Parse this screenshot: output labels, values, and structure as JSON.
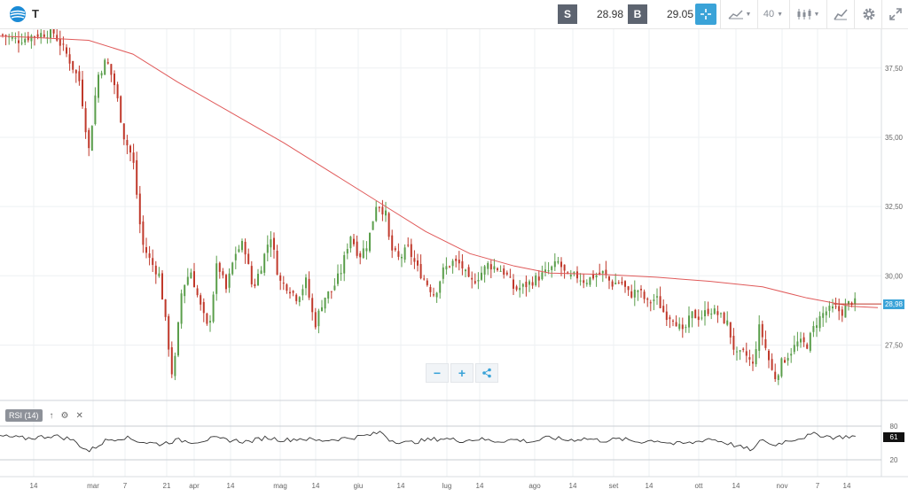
{
  "toolbar": {
    "symbol": "T",
    "sell_label": "S",
    "sell_price": "28.98",
    "buy_label": "B",
    "buy_price": "29.05",
    "period_label": "40",
    "accent_color": "#3aa3d8"
  },
  "chart_data": {
    "type": "candlestick",
    "y_ticks": [
      "37,50",
      "35,00",
      "32,50",
      "30,00",
      "27,50"
    ],
    "y_range": [
      25.5,
      38.9
    ],
    "x_ticks": [
      "14",
      "mar",
      "7",
      "21",
      "apr",
      "14",
      "mag",
      "14",
      "giu",
      "14",
      "lug",
      "14",
      "ago",
      "14",
      "set",
      "14",
      "ott",
      "14",
      "nov",
      "7",
      "14"
    ],
    "last_price_label": "28,98",
    "up_color": "#5a9e4b",
    "down_color": "#c0392b",
    "ma_color": "#e05a5a",
    "moving_average": {
      "points": [
        [
          0,
          38.65
        ],
        [
          40,
          38.6
        ],
        [
          100,
          38.5
        ],
        [
          150,
          38.0
        ],
        [
          200,
          37.0
        ],
        [
          260,
          35.9
        ],
        [
          320,
          34.8
        ],
        [
          380,
          33.6
        ],
        [
          430,
          32.6
        ],
        [
          480,
          31.6
        ],
        [
          530,
          30.8
        ],
        [
          580,
          30.35
        ],
        [
          620,
          30.1
        ],
        [
          680,
          30.05
        ],
        [
          740,
          29.95
        ],
        [
          800,
          29.8
        ],
        [
          860,
          29.6
        ],
        [
          910,
          29.2
        ],
        [
          960,
          28.9
        ],
        [
          990,
          28.85
        ]
      ]
    },
    "price_path": [
      [
        2,
        38.7
      ],
      [
        20,
        38.5
      ],
      [
        40,
        38.7
      ],
      [
        60,
        38.8
      ],
      [
        75,
        38.0
      ],
      [
        90,
        37.0
      ],
      [
        100,
        34.5
      ],
      [
        110,
        37.2
      ],
      [
        120,
        37.8
      ],
      [
        130,
        36.8
      ],
      [
        140,
        35.0
      ],
      [
        150,
        34.2
      ],
      [
        160,
        31.2
      ],
      [
        170,
        30.5
      ],
      [
        180,
        30.0
      ],
      [
        190,
        27.5
      ],
      [
        195,
        26.2
      ],
      [
        205,
        29.5
      ],
      [
        215,
        30.2
      ],
      [
        225,
        29.0
      ],
      [
        235,
        28.0
      ],
      [
        245,
        30.5
      ],
      [
        255,
        29.5
      ],
      [
        265,
        30.8
      ],
      [
        275,
        31.2
      ],
      [
        285,
        29.5
      ],
      [
        295,
        30.4
      ],
      [
        305,
        31.5
      ],
      [
        315,
        29.8
      ],
      [
        325,
        29.6
      ],
      [
        335,
        29.2
      ],
      [
        345,
        29.8
      ],
      [
        355,
        28.2
      ],
      [
        365,
        29.2
      ],
      [
        375,
        29.5
      ],
      [
        385,
        30.2
      ],
      [
        395,
        31.5
      ],
      [
        405,
        30.7
      ],
      [
        415,
        31.2
      ],
      [
        425,
        32.7
      ],
      [
        435,
        32.2
      ],
      [
        440,
        31.0
      ],
      [
        450,
        30.6
      ],
      [
        460,
        31.0
      ],
      [
        470,
        30.3
      ],
      [
        480,
        29.8
      ],
      [
        490,
        29.3
      ],
      [
        500,
        30.2
      ],
      [
        510,
        30.5
      ],
      [
        520,
        30.4
      ],
      [
        530,
        29.7
      ],
      [
        540,
        30.0
      ],
      [
        550,
        30.4
      ],
      [
        560,
        30.3
      ],
      [
        570,
        30.1
      ],
      [
        580,
        29.5
      ],
      [
        590,
        29.6
      ],
      [
        600,
        29.8
      ],
      [
        610,
        30.0
      ],
      [
        620,
        30.2
      ],
      [
        630,
        30.5
      ],
      [
        640,
        29.9
      ],
      [
        650,
        30.0
      ],
      [
        660,
        29.8
      ],
      [
        670,
        30.0
      ],
      [
        680,
        30.1
      ],
      [
        690,
        29.7
      ],
      [
        700,
        29.8
      ],
      [
        710,
        29.3
      ],
      [
        720,
        29.5
      ],
      [
        730,
        29.0
      ],
      [
        740,
        29.2
      ],
      [
        750,
        28.6
      ],
      [
        760,
        28.5
      ],
      [
        770,
        27.9
      ],
      [
        780,
        28.6
      ],
      [
        790,
        28.5
      ],
      [
        800,
        28.8
      ],
      [
        810,
        28.6
      ],
      [
        820,
        28.3
      ],
      [
        830,
        27.1
      ],
      [
        840,
        27.2
      ],
      [
        850,
        26.7
      ],
      [
        855,
        28.2
      ],
      [
        860,
        27.8
      ],
      [
        870,
        26.6
      ],
      [
        875,
        26.3
      ],
      [
        880,
        26.8
      ],
      [
        890,
        27.2
      ],
      [
        900,
        27.6
      ],
      [
        910,
        27.5
      ],
      [
        920,
        28.3
      ],
      [
        930,
        28.7
      ],
      [
        940,
        28.8
      ],
      [
        950,
        28.7
      ],
      [
        960,
        29.1
      ],
      [
        965,
        29.0
      ]
    ],
    "rsi": {
      "label": "RSI (14)",
      "levels": [
        "80",
        "20"
      ],
      "last_value_label": "61",
      "line_color": "#333333",
      "points": [
        [
          0,
          62
        ],
        [
          30,
          58
        ],
        [
          60,
          63
        ],
        [
          80,
          57
        ],
        [
          100,
          35
        ],
        [
          120,
          55
        ],
        [
          140,
          60
        ],
        [
          160,
          52
        ],
        [
          180,
          48
        ],
        [
          200,
          55
        ],
        [
          220,
          52
        ],
        [
          240,
          58
        ],
        [
          260,
          55
        ],
        [
          280,
          52
        ],
        [
          300,
          60
        ],
        [
          320,
          55
        ],
        [
          340,
          58
        ],
        [
          360,
          54
        ],
        [
          380,
          57
        ],
        [
          400,
          60
        ],
        [
          420,
          65
        ],
        [
          430,
          70
        ],
        [
          440,
          55
        ],
        [
          460,
          50
        ],
        [
          480,
          55
        ],
        [
          500,
          58
        ],
        [
          520,
          54
        ],
        [
          540,
          57
        ],
        [
          560,
          53
        ],
        [
          580,
          56
        ],
        [
          600,
          52
        ],
        [
          620,
          60
        ],
        [
          640,
          55
        ],
        [
          660,
          58
        ],
        [
          680,
          54
        ],
        [
          700,
          57
        ],
        [
          720,
          52
        ],
        [
          740,
          55
        ],
        [
          760,
          48
        ],
        [
          780,
          50
        ],
        [
          800,
          58
        ],
        [
          820,
          50
        ],
        [
          840,
          40
        ],
        [
          850,
          38
        ],
        [
          860,
          58
        ],
        [
          870,
          45
        ],
        [
          880,
          50
        ],
        [
          890,
          55
        ],
        [
          900,
          58
        ],
        [
          920,
          66
        ],
        [
          940,
          60
        ],
        [
          960,
          62
        ],
        [
          965,
          61
        ]
      ]
    }
  }
}
